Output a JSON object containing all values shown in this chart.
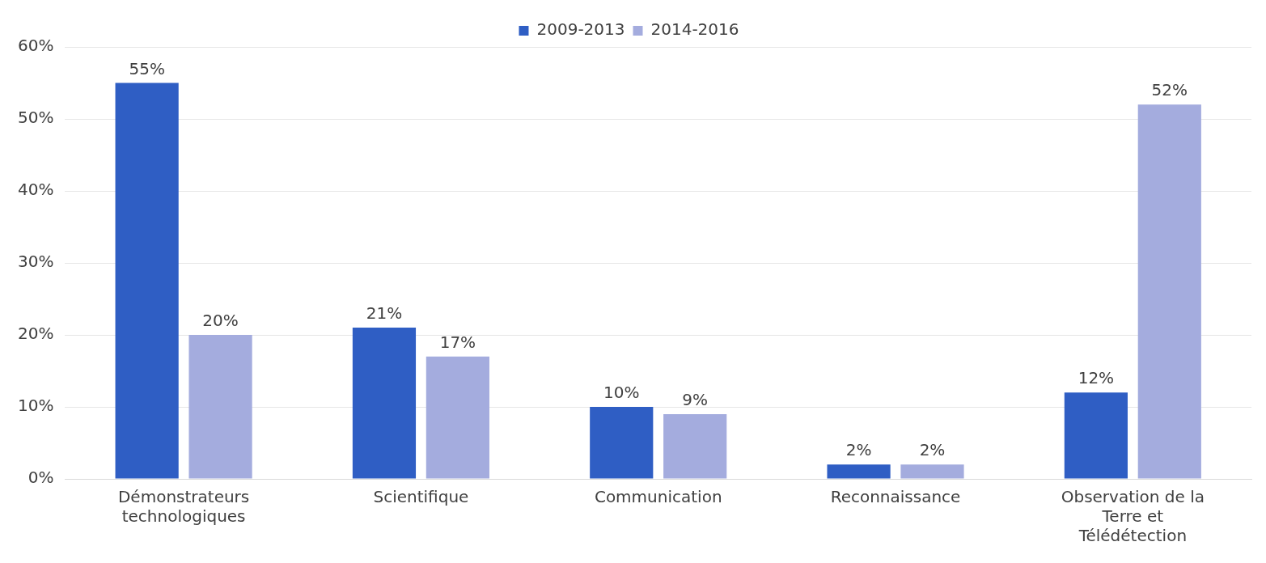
{
  "chart_data": {
    "type": "bar",
    "categories": [
      "Démonstrateurs technologiques",
      "Scientifique",
      "Communication",
      "Reconnaissance",
      "Observation de la Terre et Télédétection"
    ],
    "series": [
      {
        "name": "2009-2013",
        "color": "#2f5ec4",
        "values": [
          55,
          21,
          10,
          2,
          12
        ],
        "value_labels": [
          "55%",
          "21%",
          "10%",
          "2%",
          "12%"
        ]
      },
      {
        "name": "2014-2016",
        "color": "#a4acde",
        "values": [
          20,
          17,
          9,
          2,
          52
        ],
        "value_labels": [
          "20%",
          "17%",
          "9%",
          "2%",
          "52%"
        ]
      }
    ],
    "ylim": [
      0,
      60
    ],
    "yticks": [
      {
        "value": 0,
        "label": "0%"
      },
      {
        "value": 10,
        "label": "10%"
      },
      {
        "value": 20,
        "label": "20%"
      },
      {
        "value": 30,
        "label": "30%"
      },
      {
        "value": 40,
        "label": "40%"
      },
      {
        "value": 50,
        "label": "50%"
      },
      {
        "value": 60,
        "label": "60%"
      }
    ],
    "grid": "y",
    "legend": "top"
  }
}
